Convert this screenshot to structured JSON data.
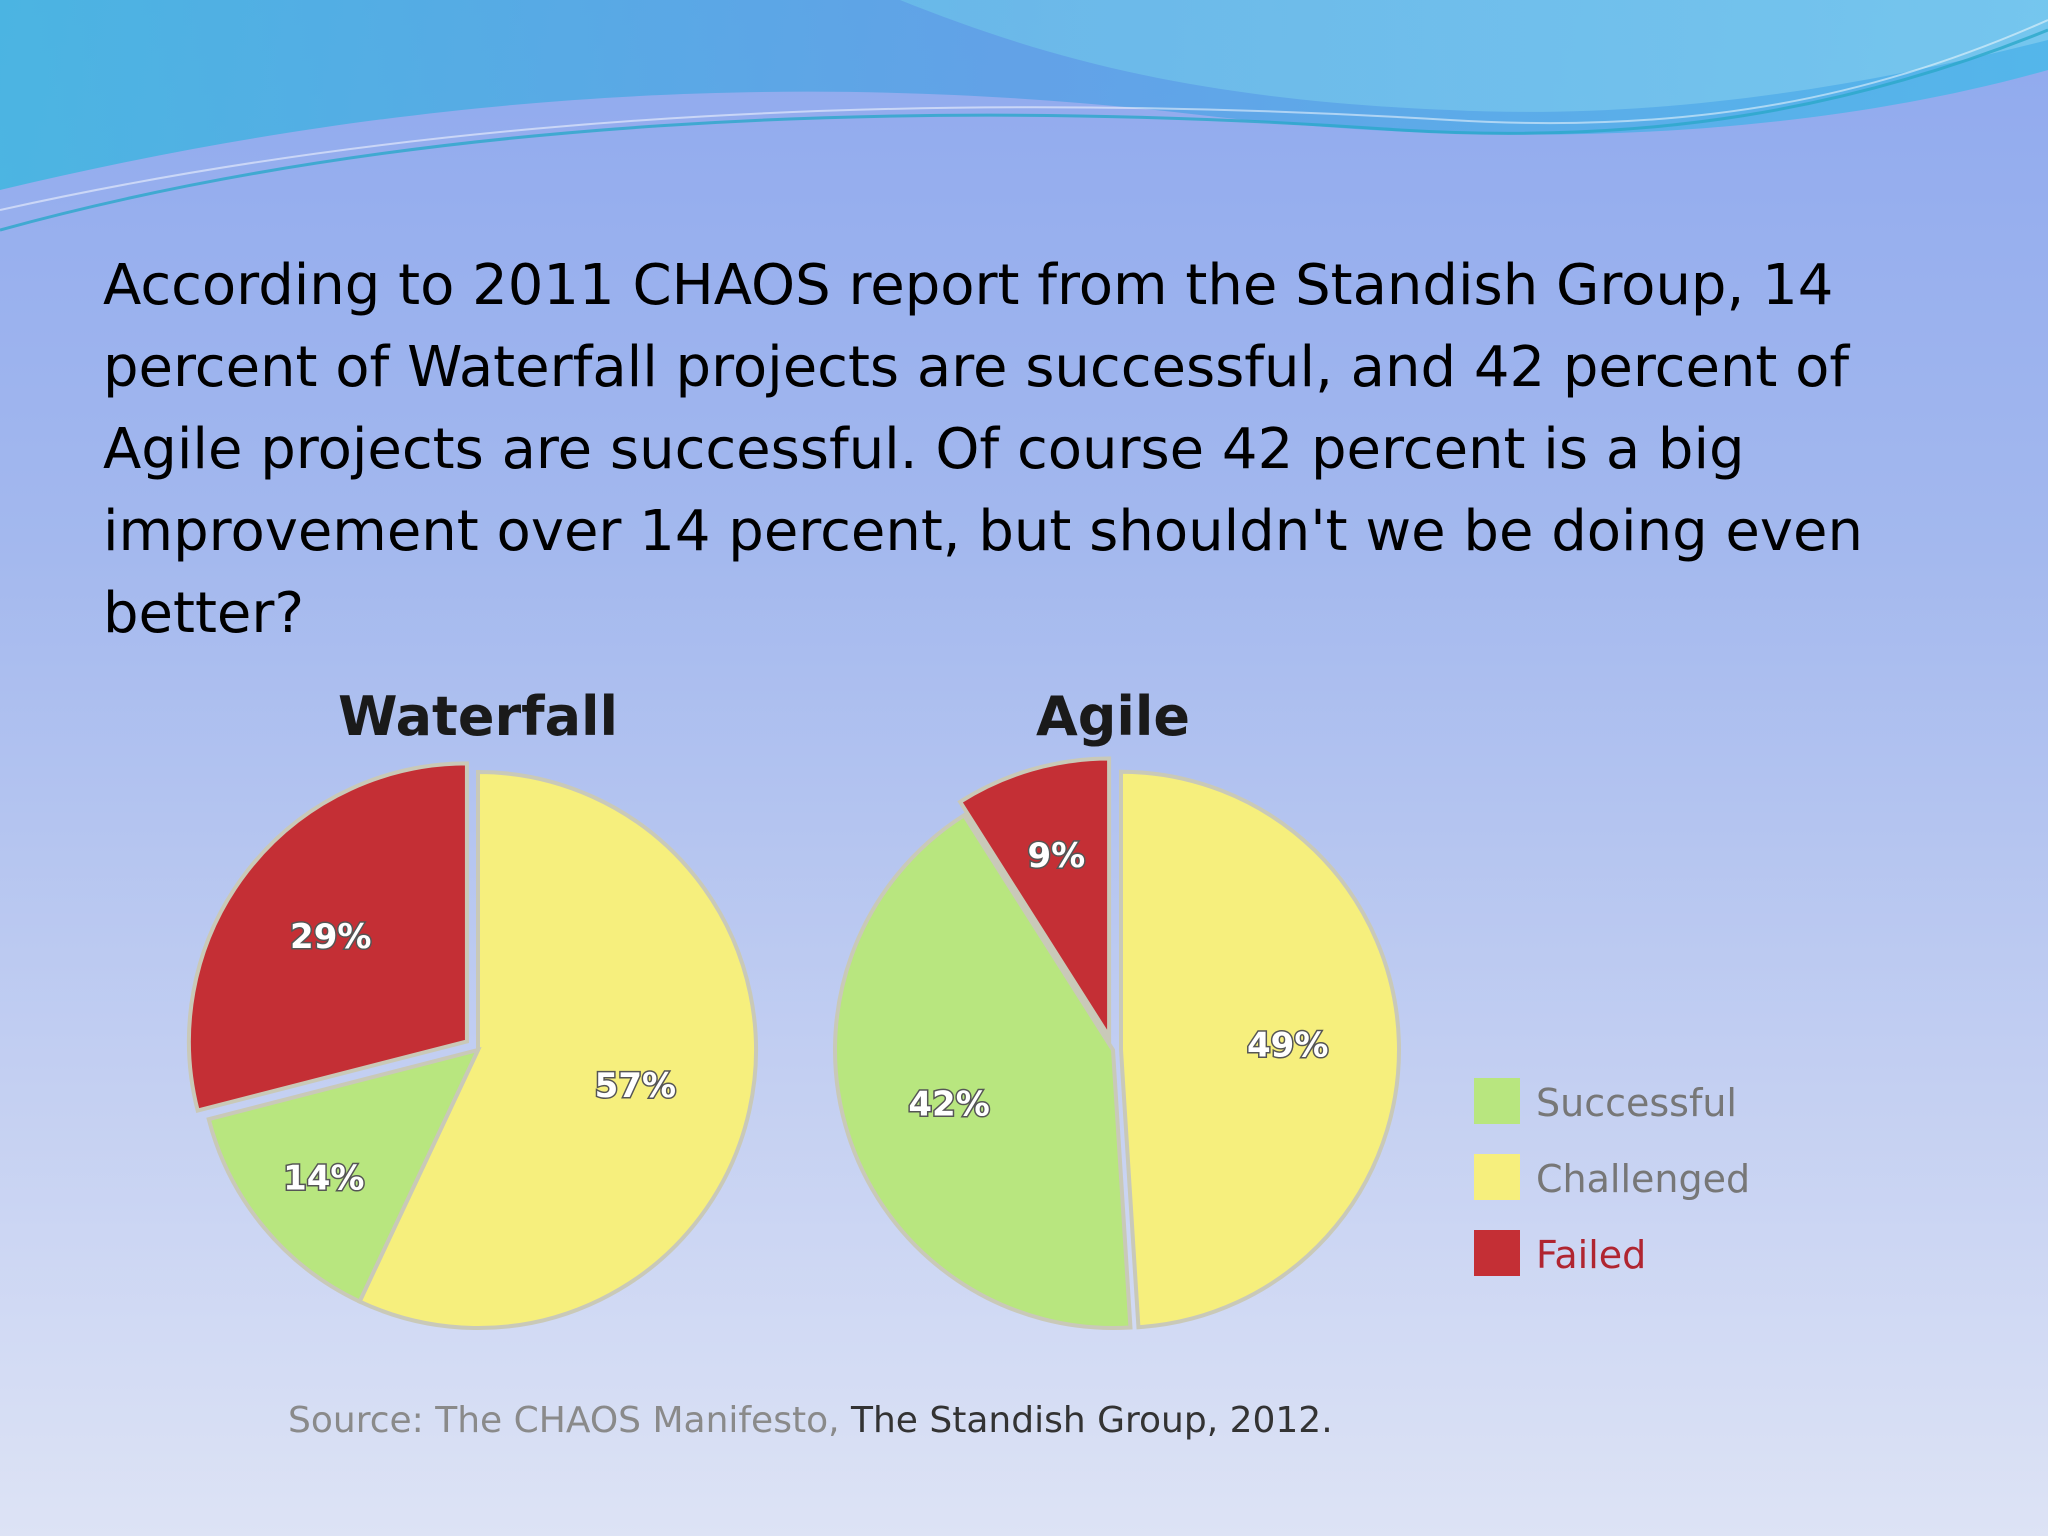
{
  "slide": {
    "paragraph": " According to 2011 CHAOS report from the Standish Group, 14 percent of Waterfall projects are successful, and 42 percent of Agile projects are successful. Of course 42 percent is a big improvement over 14 percent, but shouldn't we be doing even better?",
    "source_part1": "Source: The CHAOS Manifesto, ",
    "source_part2": "The Standish Group, 2012."
  },
  "colors": {
    "successful": "#b8e67f",
    "challenged": "#f6ef7d",
    "failed": "#c42f35",
    "legend_failed_text": "#b02530"
  },
  "chart_data": [
    {
      "type": "pie",
      "title": "Waterfall",
      "slices": [
        {
          "label": "Successful",
          "value": 14,
          "display": "14%"
        },
        {
          "label": "Challenged",
          "value": 57,
          "display": "57%"
        },
        {
          "label": "Failed",
          "value": 29,
          "display": "29%"
        }
      ]
    },
    {
      "type": "pie",
      "title": "Agile",
      "slices": [
        {
          "label": "Successful",
          "value": 42,
          "display": "42%"
        },
        {
          "label": "Challenged",
          "value": 49,
          "display": "49%"
        },
        {
          "label": "Failed",
          "value": 9,
          "display": "9%"
        }
      ]
    }
  ],
  "legend": {
    "items": [
      {
        "label": "Successful",
        "key": "successful"
      },
      {
        "label": "Challenged",
        "key": "challenged"
      },
      {
        "label": "Failed",
        "key": "failed"
      }
    ]
  }
}
